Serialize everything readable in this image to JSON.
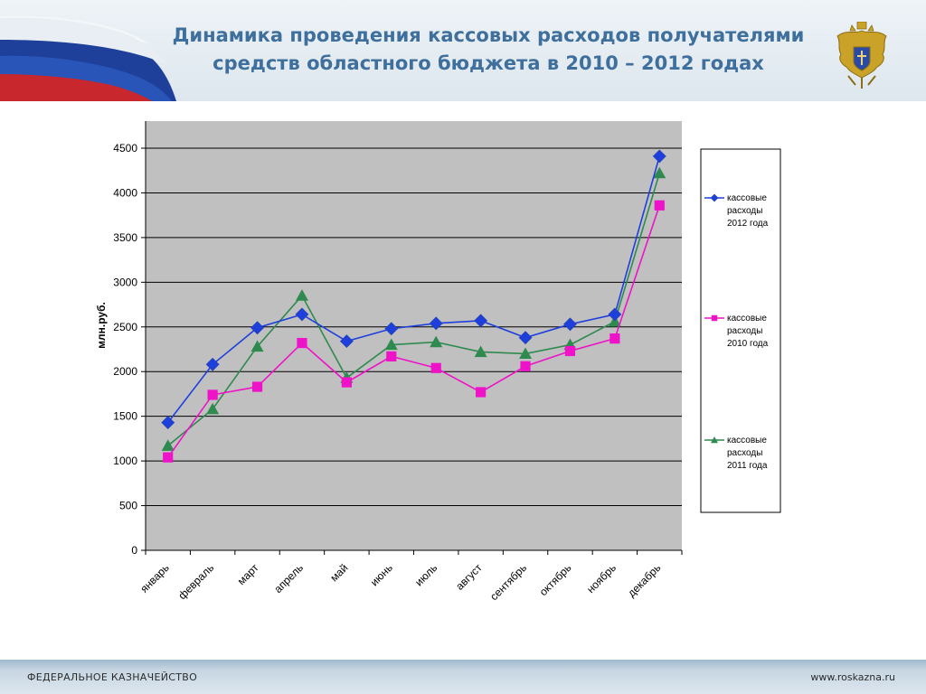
{
  "header": {
    "title_line1": "Динамика проведения кассовых расходов получателями",
    "title_line2": "средств областного бюджета в 2010 – 2012 годах"
  },
  "footer": {
    "org": "ФЕДЕРАЛЬНОЕ КАЗНАЧЕЙСТВО",
    "site": "www.roskazna.ru"
  },
  "chart_data": {
    "type": "line",
    "title": "",
    "xlabel": "",
    "ylabel": "млн.руб.",
    "ylim": [
      0,
      4500
    ],
    "yticks": [
      0,
      500,
      1000,
      1500,
      2000,
      2500,
      3000,
      3500,
      4000,
      4500
    ],
    "grid": true,
    "legend_position": "right",
    "categories": [
      "январь",
      "февраль",
      "март",
      "апрель",
      "май",
      "июнь",
      "июль",
      "август",
      "сентябрь",
      "октябрь",
      "ноябрь",
      "декабрь"
    ],
    "series": [
      {
        "name": "кассовые расходы 2012 года",
        "name_lines": [
          "кассовые",
          "расходы",
          "2012 года"
        ],
        "color": "#1f3fdc",
        "marker": "diamond",
        "values": [
          1430,
          2080,
          2490,
          2640,
          2340,
          2480,
          2540,
          2570,
          2380,
          2530,
          2640,
          4410
        ]
      },
      {
        "name": "кассовые расходы 2010 года",
        "name_lines": [
          "кассовые",
          "расходы",
          "2010 года"
        ],
        "color": "#ee12c8",
        "marker": "square",
        "values": [
          1040,
          1740,
          1830,
          2320,
          1880,
          2170,
          2040,
          1770,
          2060,
          2230,
          2370,
          3860
        ]
      },
      {
        "name": "кассовые расходы 2011 года",
        "name_lines": [
          "кассовые",
          "расходы",
          "2011 года"
        ],
        "color": "#2f8a4f",
        "marker": "triangle",
        "values": [
          1170,
          1580,
          2280,
          2850,
          1930,
          2300,
          2330,
          2220,
          2200,
          2300,
          2560,
          4220
        ]
      }
    ]
  }
}
